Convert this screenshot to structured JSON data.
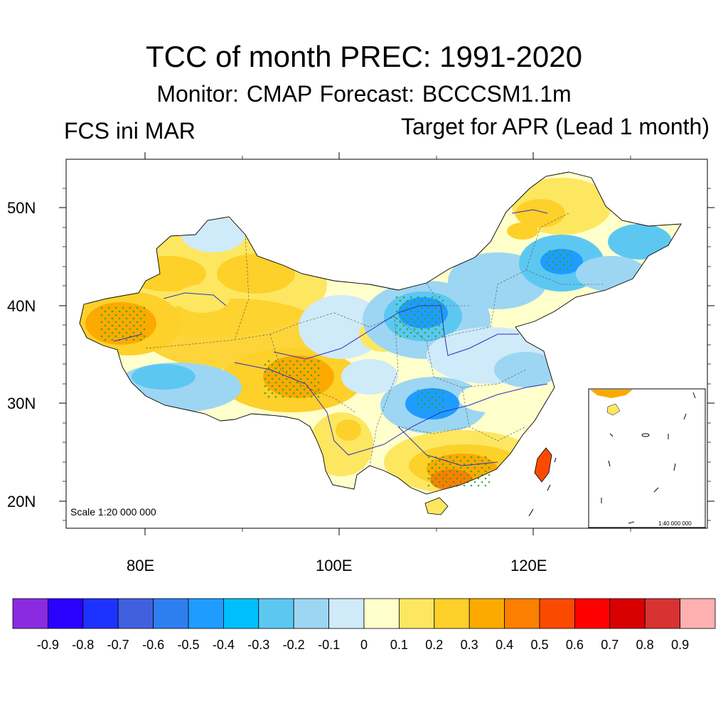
{
  "figure": {
    "title": "TCC of month PREC: 1991-2020",
    "subtitle": "Monitor: CMAP   Forecast: BCCCSM1.1m",
    "left_label": "FCS ini MAR",
    "right_label": "Target for APR (Lead 1 month)",
    "scale_main": "Scale 1:20 000 000",
    "scale_inset": "1:40 000 000"
  },
  "axes": {
    "lat_labels": [
      "50N",
      "40N",
      "30N",
      "20N"
    ],
    "lon_labels": [
      "80E",
      "100E",
      "120E"
    ]
  },
  "colorbar": {
    "colors": [
      "#8a2be2",
      "#2a00ff",
      "#1e32ff",
      "#4060e0",
      "#2d7fef",
      "#1f9cff",
      "#00bfff",
      "#5cc8f2",
      "#9dd6f2",
      "#cfeaf8",
      "#ffffcc",
      "#fde760",
      "#fdd02a",
      "#fcaa00",
      "#fc7f00",
      "#fa4a00",
      "#ff0000",
      "#d80000",
      "#d83232",
      "#ffb0b0"
    ],
    "labels": [
      "-0.9",
      "-0.8",
      "-0.7",
      "-0.6",
      "-0.5",
      "-0.4",
      "-0.3",
      "-0.2",
      "-0.1",
      "0",
      "0.1",
      "0.2",
      "0.3",
      "0.4",
      "0.5",
      "0.6",
      "0.7",
      "0.8",
      "0.9"
    ]
  }
}
